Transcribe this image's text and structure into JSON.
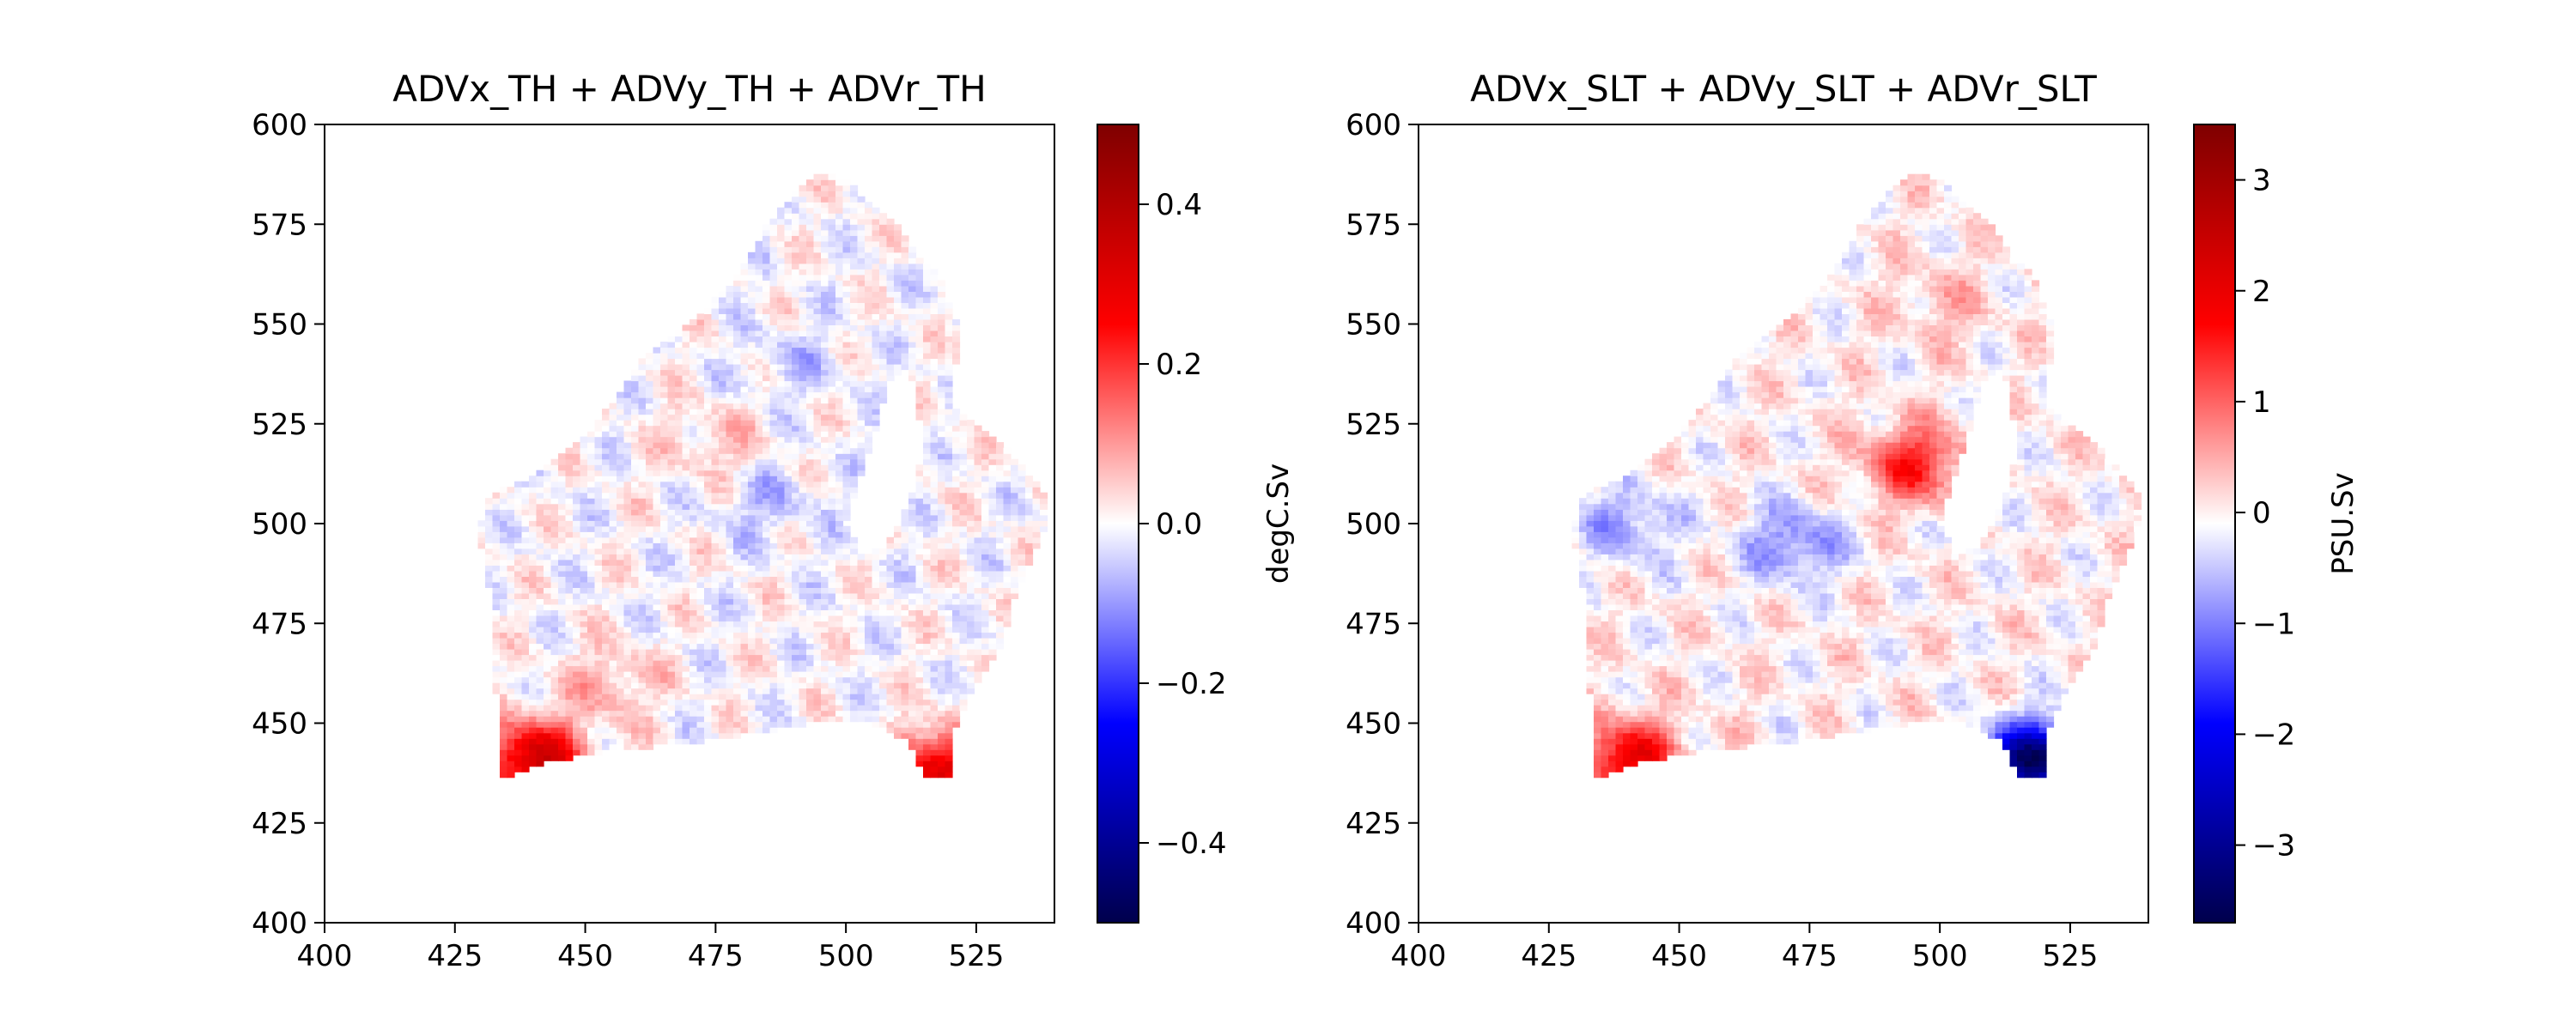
{
  "chart_data": [
    {
      "type": "heatmap",
      "title": "ADVx_TH + ADVy_TH  + ADVr_TH",
      "xlim": [
        400,
        540
      ],
      "ylim": [
        400,
        600
      ],
      "xticks": [
        400,
        425,
        450,
        475,
        500,
        525
      ],
      "yticks": [
        400,
        425,
        450,
        475,
        500,
        525,
        550,
        575,
        600
      ],
      "colormap": "seismic",
      "colorbar": {
        "label": "degC.Sv",
        "range": [
          -0.5,
          0.5
        ],
        "ticks": [
          -0.4,
          -0.2,
          0.0,
          0.2,
          0.4
        ],
        "tick_labels": [
          "−0.4",
          "−0.2",
          "0.0",
          "0.2",
          "0.4"
        ]
      },
      "features": [
        {
          "x": 440,
          "y": 441,
          "value": 0.35
        },
        {
          "x": 518,
          "y": 439,
          "value": 0.3
        },
        {
          "x": 455,
          "y": 460,
          "value": 0.08
        },
        {
          "x": 490,
          "y": 540,
          "value": -0.05
        },
        {
          "x": 475,
          "y": 520,
          "value": 0.06
        },
        {
          "x": 485,
          "y": 505,
          "value": -0.06
        }
      ],
      "colors": {
        "low": "#00004c",
        "mid": "#ffffff",
        "high": "#7f0000"
      }
    },
    {
      "type": "heatmap",
      "title": "ADVx_SLT + ADVy_SLT  + ADVr_SLT",
      "xlim": [
        400,
        540
      ],
      "ylim": [
        400,
        600
      ],
      "xticks": [
        400,
        425,
        450,
        475,
        500,
        525
      ],
      "yticks": [
        400,
        425,
        450,
        475,
        500,
        525,
        550,
        575,
        600
      ],
      "colormap": "seismic",
      "colorbar": {
        "label": "PSU.Sv",
        "range": [
          -3.7,
          3.5
        ],
        "ticks": [
          -3,
          -2,
          -1,
          0,
          1,
          2,
          3
        ],
        "tick_labels": [
          "−3",
          "−2",
          "−1",
          "0",
          "1",
          "2",
          "3"
        ]
      },
      "features": [
        {
          "x": 440,
          "y": 441,
          "value": 2.0
        },
        {
          "x": 518,
          "y": 440,
          "value": -3.5
        },
        {
          "x": 472,
          "y": 495,
          "value": -1.0
        },
        {
          "x": 495,
          "y": 515,
          "value": 1.5
        },
        {
          "x": 500,
          "y": 555,
          "value": 0.4
        },
        {
          "x": 440,
          "y": 500,
          "value": -0.8
        }
      ],
      "colors": {
        "low": "#00004c",
        "mid": "#ffffff",
        "high": "#7f0000"
      }
    }
  ]
}
